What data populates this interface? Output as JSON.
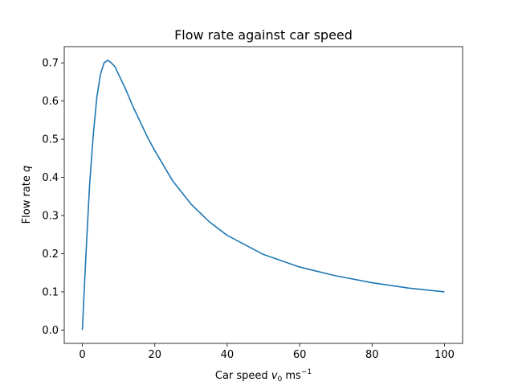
{
  "chart_data": {
    "type": "line",
    "title": "Flow rate against car speed",
    "xlabel": {
      "prefix": "Car speed ",
      "var": "v",
      "sub": "0",
      "unit": " ms",
      "sup": "−1"
    },
    "ylabel": {
      "prefix": "Flow rate ",
      "var": "q"
    },
    "xlim": [
      -5,
      105
    ],
    "ylim": [
      -0.035,
      0.7425
    ],
    "xticks": [
      0,
      20,
      40,
      60,
      80,
      100
    ],
    "xtick_labels": [
      "0",
      "20",
      "40",
      "60",
      "80",
      "100"
    ],
    "yticks": [
      0.0,
      0.1,
      0.2,
      0.3,
      0.4,
      0.5,
      0.6,
      0.7
    ],
    "ytick_labels": [
      "0.0",
      "0.1",
      "0.2",
      "0.3",
      "0.4",
      "0.5",
      "0.6",
      "0.7"
    ],
    "grid": false,
    "series": [
      {
        "color": "#1f77b4",
        "x": [
          0,
          1,
          2,
          3,
          4,
          5,
          6,
          7,
          8,
          9,
          10,
          12,
          14,
          16,
          18,
          20,
          25,
          30,
          35,
          40,
          50,
          60,
          70,
          80,
          90,
          100
        ],
        "y": [
          0.0,
          0.2,
          0.38,
          0.51,
          0.61,
          0.67,
          0.7,
          0.707,
          0.7,
          0.69,
          0.67,
          0.63,
          0.585,
          0.545,
          0.505,
          0.47,
          0.39,
          0.33,
          0.284,
          0.248,
          0.198,
          0.165,
          0.142,
          0.124,
          0.11,
          0.1
        ]
      }
    ]
  }
}
